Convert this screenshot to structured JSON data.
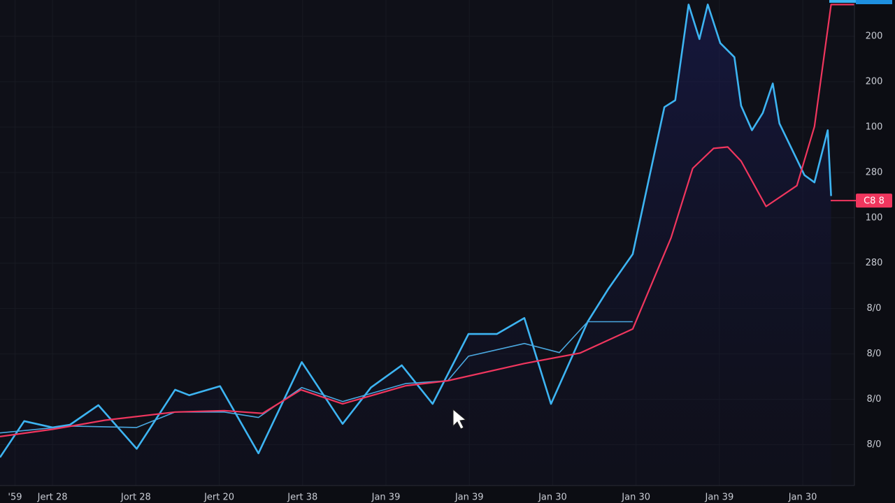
{
  "chart_data": {
    "type": "line",
    "xlim": [
      0.37,
      10.62
    ],
    "ylim": [
      0.1,
      10.8
    ],
    "xticks": [
      {
        "value": 0.55,
        "label": "'59"
      },
      {
        "value": 1,
        "label": "Jert 28"
      },
      {
        "value": 2,
        "label": "Jort 28"
      },
      {
        "value": 3,
        "label": "Jert 20"
      },
      {
        "value": 4,
        "label": "Jert 38"
      },
      {
        "value": 5,
        "label": "Jan 39"
      },
      {
        "value": 6,
        "label": "Jan 39"
      },
      {
        "value": 7,
        "label": "Jan 30"
      },
      {
        "value": 8,
        "label": "Jan 30"
      },
      {
        "value": 9,
        "label": "Jan 39"
      },
      {
        "value": 10,
        "label": "Jan 30"
      }
    ],
    "yticks": [
      {
        "value": 1,
        "label": "8/0"
      },
      {
        "value": 2,
        "label": "8/0"
      },
      {
        "value": 3,
        "label": "8/0"
      },
      {
        "value": 4,
        "label": "8/0"
      },
      {
        "value": 5,
        "label": "280"
      },
      {
        "value": 6,
        "label": "100"
      },
      {
        "value": 7,
        "label": "280"
      },
      {
        "value": 8,
        "label": "100"
      },
      {
        "value": 9,
        "label": "200"
      },
      {
        "value": 10,
        "label": "200"
      }
    ],
    "grid": true,
    "series": [
      {
        "color": "#3db4f2",
        "width": 2.6,
        "fill": true,
        "x": [
          0.37,
          0.66,
          1.0,
          1.21,
          1.55,
          2.01,
          2.47,
          2.64,
          3.01,
          3.47,
          3.99,
          4.48,
          4.82,
          5.19,
          5.56,
          5.99,
          6.33,
          6.66,
          6.98,
          7.42,
          7.67,
          7.96,
          8.34,
          8.47,
          8.63,
          8.76,
          8.86,
          9.01,
          9.18,
          9.26,
          9.39,
          9.52,
          9.64,
          9.72,
          10.02,
          10.14,
          10.3,
          10.34
        ],
        "values": [
          0.72,
          1.52,
          1.38,
          1.44,
          1.87,
          0.91,
          2.21,
          2.09,
          2.29,
          0.81,
          2.82,
          1.46,
          2.26,
          2.75,
          1.9,
          3.44,
          3.44,
          3.79,
          1.9,
          3.71,
          4.44,
          5.2,
          8.44,
          8.59,
          10.7,
          9.94,
          10.7,
          9.85,
          9.54,
          8.47,
          7.93,
          8.31,
          8.96,
          8.08,
          6.94,
          6.78,
          7.93,
          6.48
        ]
      },
      {
        "color": "#4aa8e0",
        "width": 1.6,
        "fill": false,
        "x": [
          0.37,
          1.21,
          2.01,
          2.47,
          3.06,
          3.47,
          3.99,
          4.48,
          5.24,
          5.74,
          5.99,
          6.66,
          7.08,
          7.42,
          7.96
        ],
        "values": [
          1.26,
          1.41,
          1.38,
          1.72,
          1.72,
          1.6,
          2.26,
          1.95,
          2.35,
          2.41,
          2.95,
          3.23,
          3.03,
          3.71,
          3.71
        ]
      },
      {
        "color": "#f0365e",
        "width": 2.2,
        "fill": false,
        "x": [
          0.37,
          1.0,
          1.63,
          2.47,
          3.06,
          3.52,
          3.98,
          4.48,
          5.24,
          5.74,
          6.66,
          7.33,
          7.96,
          8.42,
          8.68,
          8.93,
          9.1,
          9.26,
          9.56,
          9.93,
          10.14,
          10.34,
          10.62
        ],
        "values": [
          1.18,
          1.34,
          1.54,
          1.72,
          1.75,
          1.69,
          2.21,
          1.9,
          2.3,
          2.41,
          2.79,
          3.02,
          3.55,
          5.56,
          7.09,
          7.53,
          7.56,
          7.25,
          6.25,
          6.71,
          8.01,
          10.7,
          10.7
        ]
      }
    ],
    "annotations": [
      {
        "text": "C8 8",
        "y": 6.38,
        "color": "#f0365e"
      }
    ]
  }
}
